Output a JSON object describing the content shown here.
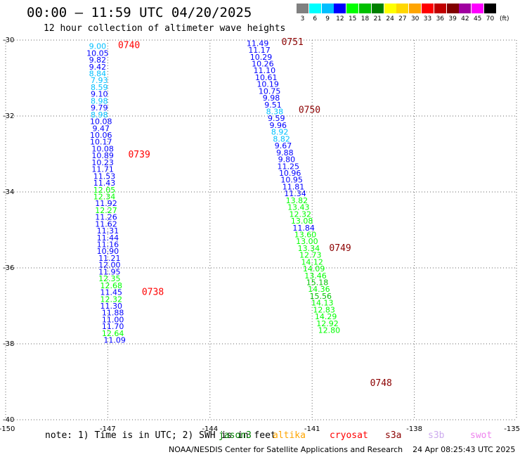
{
  "header": {
    "title": "00:00 – 11:59 UTC 04/20/2025",
    "subtitle": "12 hour collection of altimeter wave heights"
  },
  "color_scale": {
    "unit": "(ft)",
    "bins": [
      {
        "label": "3",
        "color": "#808080"
      },
      {
        "label": "6",
        "color": "#00ffff"
      },
      {
        "label": "9",
        "color": "#00bfff"
      },
      {
        "label": "12",
        "color": "#0000ff"
      },
      {
        "label": "15",
        "color": "#00ff00"
      },
      {
        "label": "18",
        "color": "#00c000"
      },
      {
        "label": "21",
        "color": "#008000"
      },
      {
        "label": "24",
        "color": "#ffff00"
      },
      {
        "label": "27",
        "color": "#ffd700"
      },
      {
        "label": "30",
        "color": "#ffa500"
      },
      {
        "label": "33",
        "color": "#ff0000"
      },
      {
        "label": "36",
        "color": "#c00000"
      },
      {
        "label": "39",
        "color": "#800000"
      },
      {
        "label": "42",
        "color": "#a000a0"
      },
      {
        "label": "45",
        "color": "#ff00ff"
      },
      {
        "label": "70",
        "color": "#000000"
      }
    ]
  },
  "note": "note: 1) Time is in UTC; 2) SWH is in feet",
  "satellites": [
    {
      "name": "jason3",
      "color": "#008000"
    },
    {
      "name": "altika",
      "color": "#ffa500"
    },
    {
      "name": "cryosat",
      "color": "#ff0000"
    },
    {
      "name": "s3a",
      "color": "#8b0000"
    },
    {
      "name": "s3b",
      "color": "#ccaaee"
    },
    {
      "name": "swot",
      "color": "#ee82ee"
    }
  ],
  "footer": "NOAA/NESDIS Center for Satellite Applications and Research    24 Apr 08:25:43 UTC 2025",
  "chart_data": {
    "type": "scatter",
    "title": "00:00 – 11:59 UTC 04/20/2025",
    "subtitle": "12 hour collection of altimeter wave heights",
    "xlim": [
      -150,
      -135
    ],
    "ylim": [
      -40,
      -30
    ],
    "x_ticks": [
      "-150",
      "-147",
      "-144",
      "-141",
      "-138",
      "-135"
    ],
    "y_ticks": [
      "-30",
      "-32",
      "-34",
      "-36",
      "-38",
      "-40"
    ],
    "grid": true,
    "time_labels": [
      {
        "text": "0740",
        "lon": -146.7,
        "lat": -30.12,
        "color": "#ff0000"
      },
      {
        "text": "0739",
        "lon": -146.4,
        "lat": -33.0,
        "color": "#ff0000"
      },
      {
        "text": "0738",
        "lon": -146.0,
        "lat": -36.62,
        "color": "#ff0000"
      },
      {
        "text": "0751",
        "lon": -141.9,
        "lat": -30.04,
        "color": "#8b0000"
      },
      {
        "text": "0750",
        "lon": -141.4,
        "lat": -31.82,
        "color": "#8b0000"
      },
      {
        "text": "0749",
        "lon": -140.5,
        "lat": -35.46,
        "color": "#8b0000"
      },
      {
        "text": "0748",
        "lon": -139.3,
        "lat": -39.02,
        "color": "#8b0000"
      }
    ],
    "series": [
      {
        "name": "0740",
        "points": [
          {
            "v": "9.00",
            "lon": -147.3,
            "lat": -30.16,
            "c": "#00bfff"
          },
          {
            "v": "10.05",
            "lon": -147.3,
            "lat": -30.34,
            "c": "#0000ff"
          },
          {
            "v": "9.82",
            "lon": -147.3,
            "lat": -30.52,
            "c": "#0000ff"
          },
          {
            "v": "9.42",
            "lon": -147.3,
            "lat": -30.7,
            "c": "#0000ff"
          },
          {
            "v": "8.84",
            "lon": -147.3,
            "lat": -30.88,
            "c": "#00bfff"
          },
          {
            "v": "7.93",
            "lon": -147.25,
            "lat": -31.06,
            "c": "#00bfff"
          },
          {
            "v": "8.59",
            "lon": -147.25,
            "lat": -31.24,
            "c": "#00bfff"
          },
          {
            "v": "9.10",
            "lon": -147.25,
            "lat": -31.42,
            "c": "#0000ff"
          },
          {
            "v": "8.98",
            "lon": -147.25,
            "lat": -31.6,
            "c": "#00bfff"
          },
          {
            "v": "9.79",
            "lon": -147.25,
            "lat": -31.78,
            "c": "#0000ff"
          },
          {
            "v": "8.98",
            "lon": -147.25,
            "lat": -31.96,
            "c": "#00bfff"
          },
          {
            "v": "10.08",
            "lon": -147.2,
            "lat": -32.14,
            "c": "#0000ff"
          },
          {
            "v": "9.47",
            "lon": -147.2,
            "lat": -32.32,
            "c": "#0000ff"
          },
          {
            "v": "10.06",
            "lon": -147.2,
            "lat": -32.5,
            "c": "#0000ff"
          },
          {
            "v": "10.17",
            "lon": -147.2,
            "lat": -32.68,
            "c": "#0000ff"
          },
          {
            "v": "10.08",
            "lon": -147.15,
            "lat": -32.86,
            "c": "#0000ff"
          },
          {
            "v": "10.89",
            "lon": -147.15,
            "lat": -33.04,
            "c": "#0000ff"
          },
          {
            "v": "10.23",
            "lon": -147.15,
            "lat": -33.22,
            "c": "#0000ff"
          },
          {
            "v": "11.71",
            "lon": -147.15,
            "lat": -33.4,
            "c": "#0000ff"
          },
          {
            "v": "11.53",
            "lon": -147.1,
            "lat": -33.58,
            "c": "#0000ff"
          },
          {
            "v": "11.43",
            "lon": -147.1,
            "lat": -33.76,
            "c": "#0000ff"
          },
          {
            "v": "12.05",
            "lon": -147.1,
            "lat": -33.94,
            "c": "#00ff00"
          },
          {
            "v": "12.34",
            "lon": -147.1,
            "lat": -34.12,
            "c": "#00ff00"
          },
          {
            "v": "11.92",
            "lon": -147.05,
            "lat": -34.3,
            "c": "#0000ff"
          },
          {
            "v": "12.27",
            "lon": -147.05,
            "lat": -34.48,
            "c": "#00ff00"
          },
          {
            "v": "11.26",
            "lon": -147.05,
            "lat": -34.66,
            "c": "#0000ff"
          },
          {
            "v": "11.62",
            "lon": -147.05,
            "lat": -34.84,
            "c": "#0000ff"
          },
          {
            "v": "11.31",
            "lon": -147.0,
            "lat": -35.02,
            "c": "#0000ff"
          },
          {
            "v": "11.44",
            "lon": -147.0,
            "lat": -35.2,
            "c": "#0000ff"
          },
          {
            "v": "11.16",
            "lon": -147.0,
            "lat": -35.38,
            "c": "#0000ff"
          },
          {
            "v": "10.90",
            "lon": -147.0,
            "lat": -35.56,
            "c": "#0000ff"
          },
          {
            "v": "11.21",
            "lon": -146.95,
            "lat": -35.74,
            "c": "#0000ff"
          },
          {
            "v": "12.00",
            "lon": -146.95,
            "lat": -35.92,
            "c": "#0000ff"
          },
          {
            "v": "11.95",
            "lon": -146.95,
            "lat": -36.1,
            "c": "#0000ff"
          },
          {
            "v": "12.35",
            "lon": -146.95,
            "lat": -36.28,
            "c": "#00ff00"
          },
          {
            "v": "12.68",
            "lon": -146.9,
            "lat": -36.46,
            "c": "#00ff00"
          },
          {
            "v": "11.45",
            "lon": -146.9,
            "lat": -36.64,
            "c": "#0000ff"
          },
          {
            "v": "12.32",
            "lon": -146.9,
            "lat": -36.82,
            "c": "#00ff00"
          },
          {
            "v": "11.30",
            "lon": -146.9,
            "lat": -37.0,
            "c": "#0000ff"
          },
          {
            "v": "11.88",
            "lon": -146.85,
            "lat": -37.18,
            "c": "#0000ff"
          },
          {
            "v": "11.00",
            "lon": -146.85,
            "lat": -37.36,
            "c": "#0000ff"
          },
          {
            "v": "11.70",
            "lon": -146.85,
            "lat": -37.54,
            "c": "#0000ff"
          },
          {
            "v": "12.64",
            "lon": -146.85,
            "lat": -37.72,
            "c": "#00ff00"
          },
          {
            "v": "11.09",
            "lon": -146.8,
            "lat": -37.9,
            "c": "#0000ff"
          }
        ]
      },
      {
        "name": "0751",
        "points": [
          {
            "v": "11.49",
            "lon": -142.6,
            "lat": -30.08,
            "c": "#0000ff"
          },
          {
            "v": "11.17",
            "lon": -142.55,
            "lat": -30.26,
            "c": "#0000ff"
          },
          {
            "v": "10.29",
            "lon": -142.5,
            "lat": -30.44,
            "c": "#0000ff"
          },
          {
            "v": "10.26",
            "lon": -142.45,
            "lat": -30.62,
            "c": "#0000ff"
          },
          {
            "v": "11.10",
            "lon": -142.4,
            "lat": -30.8,
            "c": "#0000ff"
          },
          {
            "v": "10.61",
            "lon": -142.35,
            "lat": -30.98,
            "c": "#0000ff"
          },
          {
            "v": "10.19",
            "lon": -142.3,
            "lat": -31.16,
            "c": "#0000ff"
          },
          {
            "v": "10.75",
            "lon": -142.25,
            "lat": -31.34,
            "c": "#0000ff"
          },
          {
            "v": "9.98",
            "lon": -142.2,
            "lat": -31.52,
            "c": "#0000ff"
          },
          {
            "v": "9.51",
            "lon": -142.15,
            "lat": -31.7,
            "c": "#0000ff"
          },
          {
            "v": "8.38",
            "lon": -142.1,
            "lat": -31.88,
            "c": "#00bfff"
          },
          {
            "v": "9.59",
            "lon": -142.05,
            "lat": -32.06,
            "c": "#0000ff"
          },
          {
            "v": "9.96",
            "lon": -142.0,
            "lat": -32.24,
            "c": "#0000ff"
          },
          {
            "v": "8.92",
            "lon": -141.95,
            "lat": -32.42,
            "c": "#00bfff"
          },
          {
            "v": "8.82",
            "lon": -141.9,
            "lat": -32.6,
            "c": "#00bfff"
          },
          {
            "v": "9.67",
            "lon": -141.85,
            "lat": -32.78,
            "c": "#0000ff"
          },
          {
            "v": "9.88",
            "lon": -141.8,
            "lat": -32.96,
            "c": "#0000ff"
          },
          {
            "v": "9.80",
            "lon": -141.75,
            "lat": -33.14,
            "c": "#0000ff"
          },
          {
            "v": "11.25",
            "lon": -141.7,
            "lat": -33.32,
            "c": "#0000ff"
          },
          {
            "v": "10.96",
            "lon": -141.65,
            "lat": -33.5,
            "c": "#0000ff"
          },
          {
            "v": "10.95",
            "lon": -141.6,
            "lat": -33.68,
            "c": "#0000ff"
          },
          {
            "v": "11.81",
            "lon": -141.55,
            "lat": -33.86,
            "c": "#0000ff"
          },
          {
            "v": "11.34",
            "lon": -141.5,
            "lat": -34.04,
            "c": "#0000ff"
          },
          {
            "v": "13.82",
            "lon": -141.45,
            "lat": -34.22,
            "c": "#00ff00"
          },
          {
            "v": "13.43",
            "lon": -141.4,
            "lat": -34.4,
            "c": "#00ff00"
          },
          {
            "v": "12.32",
            "lon": -141.35,
            "lat": -34.58,
            "c": "#00ff00"
          },
          {
            "v": "13.08",
            "lon": -141.3,
            "lat": -34.76,
            "c": "#00ff00"
          },
          {
            "v": "11.84",
            "lon": -141.25,
            "lat": -34.94,
            "c": "#0000ff"
          },
          {
            "v": "13.60",
            "lon": -141.2,
            "lat": -35.12,
            "c": "#00ff00"
          },
          {
            "v": "13.00",
            "lon": -141.15,
            "lat": -35.3,
            "c": "#00ff00"
          },
          {
            "v": "13.34",
            "lon": -141.1,
            "lat": -35.48,
            "c": "#00ff00"
          },
          {
            "v": "12.73",
            "lon": -141.05,
            "lat": -35.66,
            "c": "#00ff00"
          },
          {
            "v": "14.12",
            "lon": -141.0,
            "lat": -35.84,
            "c": "#00ff00"
          },
          {
            "v": "14.09",
            "lon": -140.95,
            "lat": -36.02,
            "c": "#00ff00"
          },
          {
            "v": "13.46",
            "lon": -140.9,
            "lat": -36.2,
            "c": "#00ff00"
          },
          {
            "v": "15.18",
            "lon": -140.85,
            "lat": -36.38,
            "c": "#00c000"
          },
          {
            "v": "14.36",
            "lon": -140.8,
            "lat": -36.56,
            "c": "#00ff00"
          },
          {
            "v": "15.56",
            "lon": -140.75,
            "lat": -36.74,
            "c": "#00c000"
          },
          {
            "v": "14.13",
            "lon": -140.7,
            "lat": -36.92,
            "c": "#00ff00"
          },
          {
            "v": "12.83",
            "lon": -140.65,
            "lat": -37.1,
            "c": "#00ff00"
          },
          {
            "v": "14.29",
            "lon": -140.6,
            "lat": -37.28,
            "c": "#00ff00"
          },
          {
            "v": "12.92",
            "lon": -140.55,
            "lat": -37.46,
            "c": "#00ff00"
          },
          {
            "v": "12.80",
            "lon": -140.5,
            "lat": -37.64,
            "c": "#00ff00"
          }
        ]
      }
    ]
  }
}
